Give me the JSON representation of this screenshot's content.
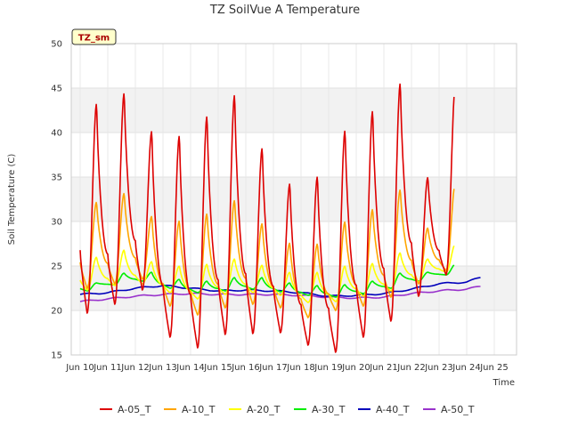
{
  "chart_data": {
    "type": "line",
    "title": "TZ SoilVue A Temperature",
    "xlabel": "Time",
    "ylabel": "Soil Temperature (C)",
    "badge": "TZ_sm",
    "ylim": [
      15,
      50
    ],
    "xlim": [
      0,
      16
    ],
    "y_ticks": [
      15,
      20,
      25,
      30,
      35,
      40,
      45,
      50
    ],
    "x_ticks": [
      {
        "x": 0,
        "label": "Jun 10"
      },
      {
        "x": 1,
        "label": "Jun 11"
      },
      {
        "x": 2,
        "label": "Jun 12"
      },
      {
        "x": 3,
        "label": "Jun 13"
      },
      {
        "x": 4,
        "label": "Jun 14"
      },
      {
        "x": 5,
        "label": "Jun 15"
      },
      {
        "x": 6,
        "label": "Jun 16"
      },
      {
        "x": 7,
        "label": "Jun 17"
      },
      {
        "x": 8,
        "label": "Jun 18"
      },
      {
        "x": 9,
        "label": "Jun 19"
      },
      {
        "x": 10,
        "label": "Jun 20"
      },
      {
        "x": 11,
        "label": "Jun 21"
      },
      {
        "x": 12,
        "label": "Jun 22"
      },
      {
        "x": 13,
        "label": "Jun 23"
      },
      {
        "x": 14,
        "label": "Jun 24"
      },
      {
        "x": 15,
        "label": "Jun 25"
      }
    ],
    "x_unit_note": "days since Jun 10",
    "grid": true,
    "legend_position": "bottom",
    "series": [
      {
        "name": "A-05_T",
        "color": "#dd0000",
        "daily_max": [
          43.3,
          44.5,
          40.2,
          39.7,
          41.9,
          44.3,
          38.3,
          34.3,
          35.1,
          40.3,
          42.5,
          45.6,
          35.0,
          45.6
        ],
        "daily_min": [
          19.7,
          20.7,
          22.3,
          17.0,
          15.8,
          17.3,
          17.4,
          17.5,
          16.1,
          15.3,
          17.0,
          18.8,
          21.6,
          24.0
        ]
      },
      {
        "name": "A-10_T",
        "color": "#ffa500",
        "daily_max": [
          32.2,
          33.2,
          30.6,
          30.1,
          30.9,
          32.4,
          29.8,
          27.6,
          27.5,
          30.0,
          31.4,
          33.6,
          29.3,
          34.4
        ],
        "daily_min": [
          22.5,
          23.0,
          23.5,
          20.5,
          19.5,
          20.3,
          20.7,
          20.3,
          19.2,
          20.0,
          20.5,
          21.5,
          23.0,
          24.5
        ]
      },
      {
        "name": "A-20_T",
        "color": "#ffff00",
        "daily_max": [
          26.0,
          26.8,
          25.5,
          25.0,
          25.2,
          25.8,
          25.1,
          24.3,
          24.3,
          25.0,
          25.3,
          26.5,
          25.8,
          27.5
        ],
        "daily_min": [
          22.3,
          22.8,
          23.0,
          22.0,
          21.3,
          21.8,
          22.0,
          21.7,
          20.9,
          21.0,
          21.6,
          22.2,
          23.2,
          24.3
        ]
      },
      {
        "name": "A-30_T",
        "color": "#00ee00",
        "daily_max": [
          23.1,
          24.2,
          24.3,
          23.5,
          23.3,
          23.7,
          23.7,
          23.1,
          22.8,
          22.9,
          23.3,
          24.2,
          24.3,
          25.2
        ],
        "daily_min": [
          22.2,
          22.9,
          23.3,
          22.5,
          22.0,
          22.2,
          22.4,
          22.1,
          21.7,
          21.5,
          21.9,
          22.5,
          23.3,
          24.0
        ]
      },
      {
        "name": "A-40_T",
        "color": "#0000bb",
        "trend": [
          [
            0,
            21.8
          ],
          [
            1,
            22.0
          ],
          [
            2,
            22.5
          ],
          [
            3,
            22.8
          ],
          [
            4,
            22.5
          ],
          [
            5,
            22.2
          ],
          [
            6,
            22.3
          ],
          [
            7,
            22.2
          ],
          [
            8,
            22.0
          ],
          [
            9,
            21.6
          ],
          [
            10,
            21.7
          ],
          [
            11,
            21.9
          ],
          [
            12,
            22.4
          ],
          [
            13,
            23.0
          ],
          [
            14,
            23.2
          ],
          [
            14.5,
            23.7
          ]
        ]
      },
      {
        "name": "A-50_T",
        "color": "#9933cc",
        "trend": [
          [
            0,
            21.0
          ],
          [
            1,
            21.3
          ],
          [
            2,
            21.6
          ],
          [
            3,
            21.8
          ],
          [
            4,
            21.9
          ],
          [
            5,
            21.8
          ],
          [
            6,
            21.8
          ],
          [
            7,
            21.8
          ],
          [
            8,
            21.7
          ],
          [
            9,
            21.5
          ],
          [
            10,
            21.4
          ],
          [
            11,
            21.5
          ],
          [
            12,
            21.9
          ],
          [
            13,
            22.2
          ],
          [
            14,
            22.4
          ],
          [
            14.5,
            22.7
          ]
        ]
      }
    ]
  }
}
